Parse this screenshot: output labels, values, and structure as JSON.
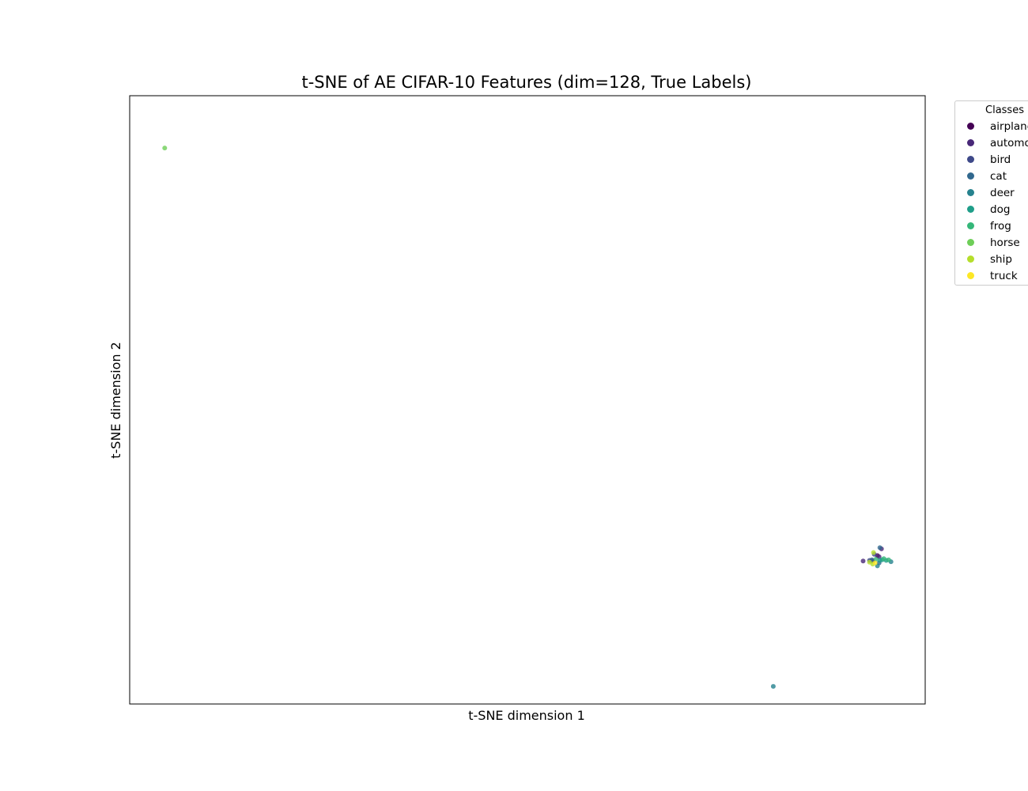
{
  "chart_data": {
    "type": "scatter",
    "title": "t-SNE of AE CIFAR-10 Features (dim=128, True Labels)",
    "xlabel": "t-SNE dimension 1",
    "ylabel": "t-SNE dimension 2",
    "xlim": [
      -50,
      50
    ],
    "ylim": [
      -50,
      50
    ],
    "grid": false,
    "ticks": false,
    "legend": {
      "title": "Classes",
      "placement": "outside-right",
      "entries": [
        "airplane",
        "automobile",
        "bird",
        "cat",
        "deer",
        "dog",
        "frog",
        "horse",
        "ship",
        "truck"
      ]
    },
    "series": [
      {
        "name": "airplane",
        "color": "#440154",
        "points": [
          [
            43.4,
            -26.5
          ],
          [
            44.0,
            -25.6
          ]
        ]
      },
      {
        "name": "automobile",
        "color": "#482878",
        "points": [
          [
            42.2,
            -26.5
          ],
          [
            44.2,
            -25.8
          ],
          [
            44.5,
            -24.5
          ]
        ]
      },
      {
        "name": "bird",
        "color": "#3e4989",
        "points": [
          [
            43.0,
            -26.4
          ],
          [
            43.6,
            -25.4
          ]
        ]
      },
      {
        "name": "cat",
        "color": "#31688e",
        "points": [
          [
            43.3,
            -26.3
          ],
          [
            44.3,
            -24.3
          ],
          [
            44.2,
            -26.8
          ]
        ]
      },
      {
        "name": "deer",
        "color": "#26828e",
        "points": [
          [
            30.9,
            -47.1
          ],
          [
            45.7,
            -26.6
          ],
          [
            44.0,
            -27.3
          ]
        ]
      },
      {
        "name": "dog",
        "color": "#1f9e89",
        "points": [
          [
            44.6,
            -26.3
          ],
          [
            45.1,
            -26.4
          ],
          [
            44.3,
            -26.4
          ]
        ]
      },
      {
        "name": "frog",
        "color": "#35b779",
        "points": [
          [
            44.8,
            -26.1
          ],
          [
            45.4,
            -26.3
          ],
          [
            43.8,
            -26.2
          ]
        ]
      },
      {
        "name": "horse",
        "color": "#6ece58",
        "points": [
          [
            -45.6,
            41.4
          ]
        ]
      },
      {
        "name": "ship",
        "color": "#b5de2b",
        "points": [
          [
            43.5,
            -25.1
          ],
          [
            43.0,
            -26.7
          ],
          [
            43.4,
            -27.0
          ]
        ]
      },
      {
        "name": "truck",
        "color": "#fde725",
        "points": [
          [
            43.7,
            -26.8
          ]
        ]
      }
    ]
  }
}
